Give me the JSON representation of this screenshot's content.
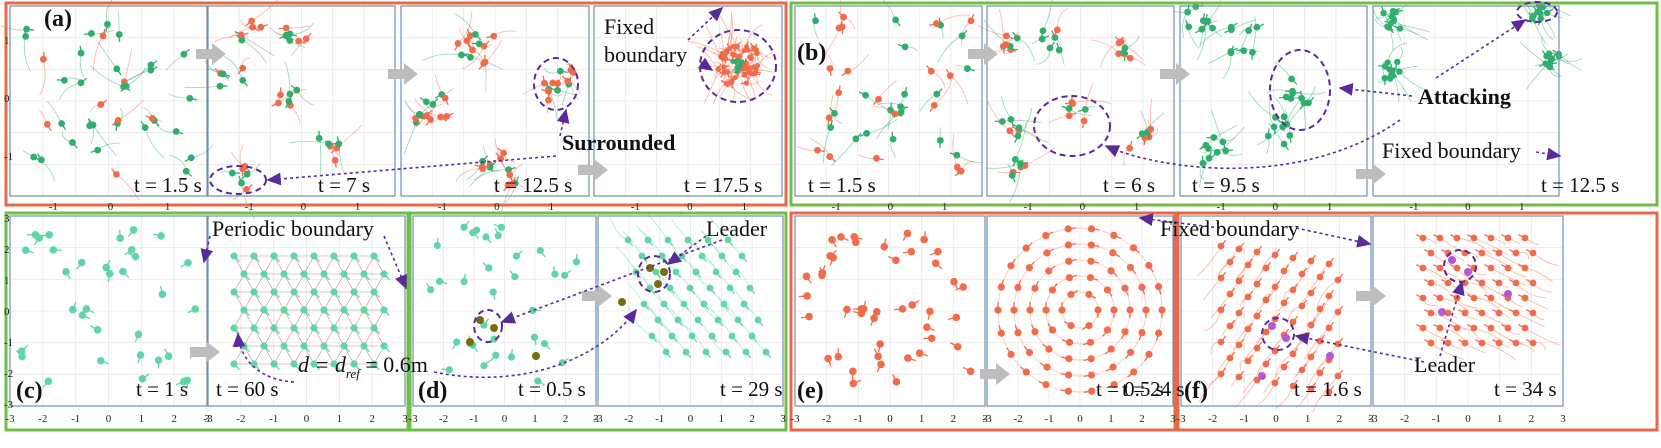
{
  "colors": {
    "red_agent": "#f26b4b",
    "green_agent": "#2fae6e",
    "cyan_agent": "#5fd6a4",
    "olive_leader": "#7a6a10",
    "purple_leader": "#b657d8",
    "red_frame": "#e8684a",
    "green_frame": "#6fbf47",
    "dashed_ellipse": "#5a2a9a",
    "arrow_gray": "#bdbdbd"
  },
  "panels": {
    "a": {
      "label": "(a)",
      "times": [
        "t = 1.5 s",
        "t = 7 s",
        "t = 12.5 s",
        "t = 17.5 s"
      ]
    },
    "b": {
      "label": "(b)",
      "times": [
        "t = 1.5 s",
        "t = 6 s",
        "t =  9.5 s",
        "t = 12.5 s"
      ]
    },
    "c": {
      "label": "(c)",
      "times": [
        "t = 1 s",
        "t = 60 s"
      ]
    },
    "d": {
      "label": "(d)",
      "times": [
        "t = 0.5 s",
        "t = 29 s"
      ]
    },
    "e": {
      "label": "(e)",
      "times": [
        "t = 0.5 s",
        "t = 24 s"
      ]
    },
    "f": {
      "label": "(f)",
      "times": [
        "t = 1.6 s",
        "t = 34 s"
      ]
    }
  },
  "annotations": {
    "fixed_boundary_a": "Fixed\nboundary",
    "surrounded": "Surrounded",
    "attacking": "Attacking",
    "fixed_boundary_b": "Fixed boundary",
    "periodic_boundary": "Periodic boundary",
    "distance": "d = d",
    "distance_sub": "ref",
    "distance_val": " = 0.6m",
    "leader_d": "Leader",
    "fixed_boundary_ef": "Fixed boundary",
    "leader_f": "Leader"
  },
  "axes": {
    "top_x_ticks": [
      "-1",
      "0",
      "1"
    ],
    "top_y_ticks": [
      "1",
      "0",
      "-1"
    ],
    "bottom_x_ticks": [
      "-3",
      "-2",
      "-1",
      "0",
      "1",
      "2",
      "3"
    ],
    "bottom_y_ticks": [
      "3",
      "2",
      "1",
      "0",
      "-1",
      "-2",
      "-3"
    ],
    "bottom_x_ticks_shared": [
      "3-3"
    ]
  }
}
